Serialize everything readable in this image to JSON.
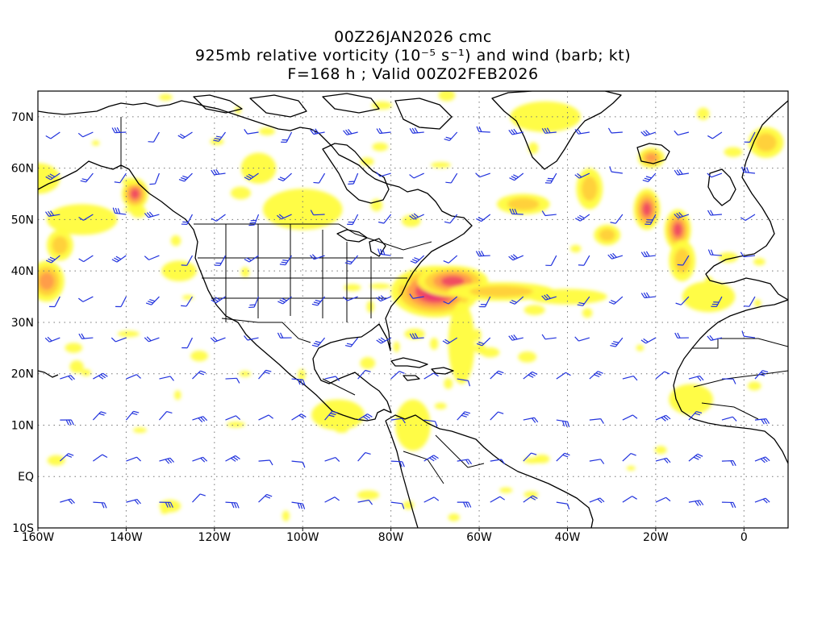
{
  "title": {
    "line1": "00Z26JAN2026 cmc",
    "line2": "925mb relative vorticity (10⁻⁵ s⁻¹) and wind (barb; kt)",
    "line3": "F=168 h ; Valid 00Z02FEB2026"
  },
  "axes": {
    "lon_labels": [
      "160W",
      "140W",
      "120W",
      "100W",
      "80W",
      "60W",
      "40W",
      "20W",
      "0"
    ],
    "lat_labels": [
      "70N",
      "60N",
      "50N",
      "40N",
      "30N",
      "20N",
      "10N",
      "EQ",
      "10S"
    ],
    "lon_range": [
      -160,
      10
    ],
    "lat_range": [
      -10,
      75
    ]
  },
  "colors": {
    "vort_light": "#fffc3c",
    "vort_mid": "#ffcf3a",
    "vort_orange": "#ff9a4a",
    "vort_red": "#f04a62",
    "vort_magenta": "#e8207a",
    "barb": "#2233dd",
    "coast": "#000000"
  },
  "vorticity_maxima": [
    {
      "lon": -70,
      "lat": 36,
      "level": 5,
      "rx": 10,
      "ry": 5
    },
    {
      "lon": -66,
      "lat": 38,
      "level": 4,
      "rx": 8,
      "ry": 3
    },
    {
      "lon": -55,
      "lat": 36,
      "level": 2,
      "rx": 12,
      "ry": 1.8
    },
    {
      "lon": -40,
      "lat": 35,
      "level": 1,
      "rx": 9,
      "ry": 1.5
    },
    {
      "lon": -64,
      "lat": 26,
      "level": 1,
      "rx": 3,
      "ry": 8
    },
    {
      "lon": -22,
      "lat": 52,
      "level": 4,
      "rx": 3,
      "ry": 4
    },
    {
      "lon": -15,
      "lat": 48,
      "level": 4,
      "rx": 3,
      "ry": 4
    },
    {
      "lon": -14,
      "lat": 42,
      "level": 2,
      "rx": 3,
      "ry": 4
    },
    {
      "lon": -21,
      "lat": 62,
      "level": 3,
      "rx": 3,
      "ry": 2
    },
    {
      "lon": -35,
      "lat": 56,
      "level": 2,
      "rx": 3,
      "ry": 4
    },
    {
      "lon": -31,
      "lat": 47,
      "level": 2,
      "rx": 3,
      "ry": 2
    },
    {
      "lon": -50,
      "lat": 53,
      "level": 2,
      "rx": 6,
      "ry": 2
    },
    {
      "lon": -138,
      "lat": 55,
      "level": 4,
      "rx": 3,
      "ry": 3
    },
    {
      "lon": -158,
      "lat": 38,
      "level": 3,
      "rx": 4,
      "ry": 4
    },
    {
      "lon": -150,
      "lat": 50,
      "level": 1,
      "rx": 8,
      "ry": 3
    },
    {
      "lon": -100,
      "lat": 52,
      "level": 1,
      "rx": 9,
      "ry": 4
    },
    {
      "lon": -92,
      "lat": 12,
      "level": 1,
      "rx": 6,
      "ry": 3
    },
    {
      "lon": -75,
      "lat": 10,
      "level": 1,
      "rx": 4,
      "ry": 5
    },
    {
      "lon": -45,
      "lat": 70,
      "level": 1,
      "rx": 8,
      "ry": 3
    },
    {
      "lon": -12,
      "lat": 15,
      "level": 1,
      "rx": 5,
      "ry": 3
    },
    {
      "lon": -8,
      "lat": 35,
      "level": 1,
      "rx": 6,
      "ry": 3
    },
    {
      "lon": 5,
      "lat": 65,
      "level": 2,
      "rx": 4,
      "ry": 3
    },
    {
      "lon": -110,
      "lat": 60,
      "level": 1,
      "rx": 4,
      "ry": 3
    },
    {
      "lon": -128,
      "lat": 40,
      "level": 1,
      "rx": 4,
      "ry": 2
    },
    {
      "lon": -160,
      "lat": 58,
      "level": 1,
      "rx": 5,
      "ry": 3
    },
    {
      "lon": -155,
      "lat": 45,
      "level": 2,
      "rx": 3,
      "ry": 3
    }
  ]
}
